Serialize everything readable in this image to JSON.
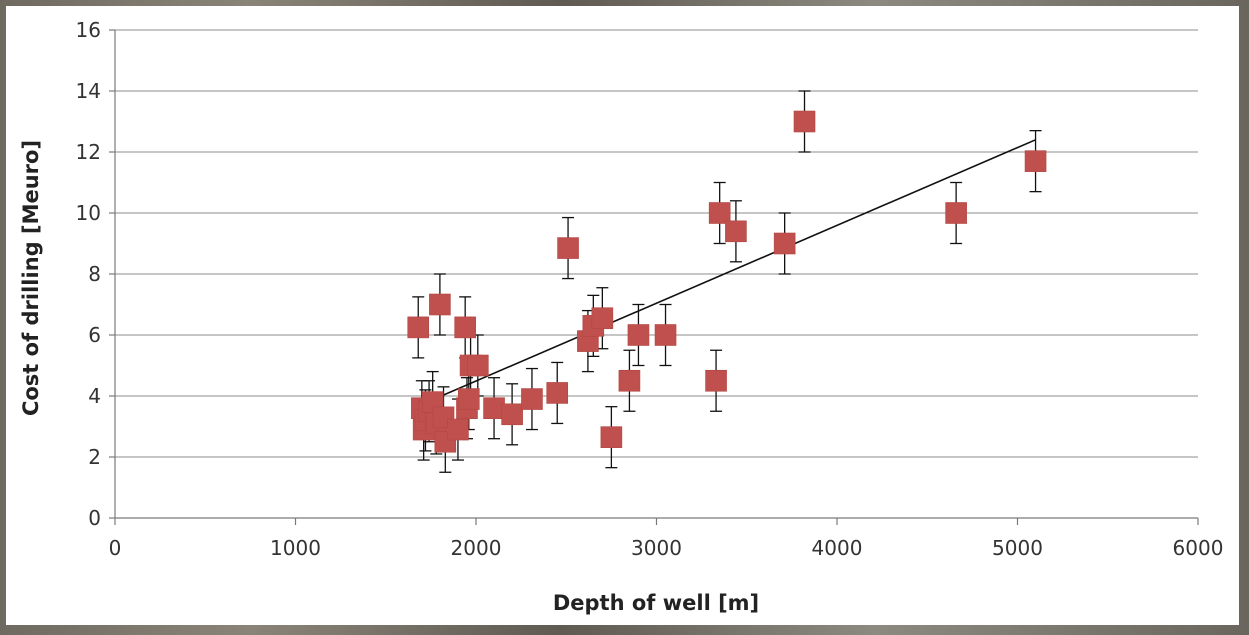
{
  "chart_data": {
    "type": "scatter",
    "xlabel": "Depth of well [m]",
    "ylabel": "Cost of drilling [Meuro]",
    "xlim": [
      0,
      6000
    ],
    "ylim": [
      0,
      16
    ],
    "xticks": [
      0,
      1000,
      2000,
      3000,
      4000,
      5000,
      6000
    ],
    "yticks": [
      0,
      2,
      4,
      6,
      8,
      10,
      12,
      14,
      16
    ],
    "x_tick_labels": [
      "0",
      "1000",
      "2000",
      "3000",
      "4000",
      "5000",
      "6000"
    ],
    "y_tick_labels": [
      "0",
      "2",
      "4",
      "6",
      "8",
      "10",
      "12",
      "14",
      "16"
    ],
    "grid": "horizontal",
    "legend": "none",
    "marker_color": "#c0504d",
    "trendline": {
      "x": [
        1690,
        5100
      ],
      "y": [
        3.7,
        12.4
      ]
    },
    "points": [
      {
        "x": 1680,
        "y": 6.25,
        "err": 1.0
      },
      {
        "x": 1700,
        "y": 3.6,
        "err": 0.9
      },
      {
        "x": 1710,
        "y": 2.9,
        "err": 1.0
      },
      {
        "x": 1720,
        "y": 3.2,
        "err": 1.0
      },
      {
        "x": 1740,
        "y": 3.5,
        "err": 1.0
      },
      {
        "x": 1760,
        "y": 3.8,
        "err": 1.0
      },
      {
        "x": 1780,
        "y": 3.1,
        "err": 1.0
      },
      {
        "x": 1800,
        "y": 7.0,
        "err": 1.0
      },
      {
        "x": 1820,
        "y": 3.3,
        "err": 1.0
      },
      {
        "x": 1830,
        "y": 2.5,
        "err": 1.0
      },
      {
        "x": 1900,
        "y": 2.9,
        "err": 1.0
      },
      {
        "x": 1940,
        "y": 6.25,
        "err": 1.0
      },
      {
        "x": 1950,
        "y": 3.6,
        "err": 1.0
      },
      {
        "x": 1960,
        "y": 3.9,
        "err": 1.0
      },
      {
        "x": 1970,
        "y": 5.0,
        "err": 1.0
      },
      {
        "x": 2010,
        "y": 5.0,
        "err": 1.0
      },
      {
        "x": 2100,
        "y": 3.6,
        "err": 1.0
      },
      {
        "x": 2200,
        "y": 3.4,
        "err": 1.0
      },
      {
        "x": 2310,
        "y": 3.9,
        "err": 1.0
      },
      {
        "x": 2450,
        "y": 4.1,
        "err": 1.0
      },
      {
        "x": 2510,
        "y": 8.85,
        "err": 1.0
      },
      {
        "x": 2620,
        "y": 5.8,
        "err": 1.0
      },
      {
        "x": 2650,
        "y": 6.3,
        "err": 1.0
      },
      {
        "x": 2700,
        "y": 6.55,
        "err": 1.0
      },
      {
        "x": 2750,
        "y": 2.65,
        "err": 1.0
      },
      {
        "x": 2850,
        "y": 4.5,
        "err": 1.0
      },
      {
        "x": 2900,
        "y": 6.0,
        "err": 1.0
      },
      {
        "x": 3050,
        "y": 6.0,
        "err": 1.0
      },
      {
        "x": 3330,
        "y": 4.5,
        "err": 1.0
      },
      {
        "x": 3350,
        "y": 10.0,
        "err": 1.0
      },
      {
        "x": 3440,
        "y": 9.4,
        "err": 1.0
      },
      {
        "x": 3710,
        "y": 9.0,
        "err": 1.0
      },
      {
        "x": 3820,
        "y": 13.0,
        "err": 1.0
      },
      {
        "x": 4660,
        "y": 10.0,
        "err": 1.0
      },
      {
        "x": 5100,
        "y": 11.7,
        "err": 1.0
      }
    ]
  }
}
